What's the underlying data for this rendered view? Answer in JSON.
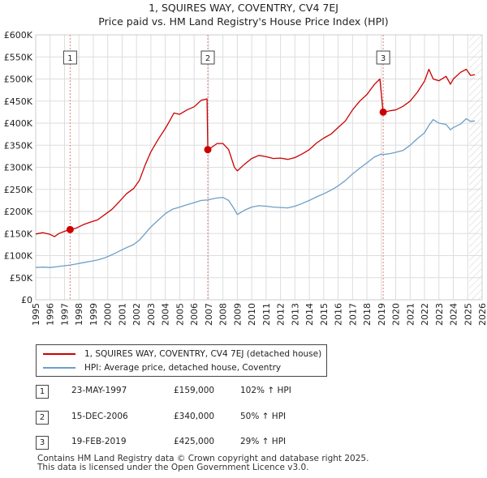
{
  "chart_data": {
    "type": "line",
    "title": "1, SQUIRES WAY, COVENTRY, CV4 7EJ",
    "subtitle": "Price paid vs. HM Land Registry's House Price Index (HPI)",
    "xlim": [
      1995,
      2026
    ],
    "ylim": [
      0,
      600000
    ],
    "x_ticks": [
      "1995",
      "1996",
      "1997",
      "1998",
      "1999",
      "2000",
      "2001",
      "2002",
      "2003",
      "2004",
      "2005",
      "2006",
      "2007",
      "2008",
      "2009",
      "2010",
      "2011",
      "2012",
      "2013",
      "2014",
      "2015",
      "2016",
      "2017",
      "2018",
      "2019",
      "2020",
      "2021",
      "2022",
      "2023",
      "2024",
      "2025",
      "2026"
    ],
    "y_ticks": [
      {
        "value": 0,
        "label": "£0"
      },
      {
        "value": 50000,
        "label": "£50K"
      },
      {
        "value": 100000,
        "label": "£100K"
      },
      {
        "value": 150000,
        "label": "£150K"
      },
      {
        "value": 200000,
        "label": "£200K"
      },
      {
        "value": 250000,
        "label": "£250K"
      },
      {
        "value": 300000,
        "label": "£300K"
      },
      {
        "value": 350000,
        "label": "£350K"
      },
      {
        "value": 400000,
        "label": "£400K"
      },
      {
        "value": 450000,
        "label": "£450K"
      },
      {
        "value": 500000,
        "label": "£500K"
      },
      {
        "value": 550000,
        "label": "£550K"
      },
      {
        "value": 600000,
        "label": "£600K"
      }
    ],
    "grid": true,
    "future_hatch_from": 2025.1,
    "series": [
      {
        "name": "1, SQUIRES WAY, COVENTRY, CV4 7EJ (detached house)",
        "color": "#cc0000",
        "points": [
          [
            1995.0,
            149000
          ],
          [
            1995.5,
            152000
          ],
          [
            1996.0,
            148000
          ],
          [
            1996.3,
            143000
          ],
          [
            1996.6,
            150000
          ],
          [
            1997.0,
            155000
          ],
          [
            1997.39,
            159000
          ],
          [
            1997.8,
            162000
          ],
          [
            1998.3,
            170000
          ],
          [
            1998.8,
            176000
          ],
          [
            1999.3,
            181000
          ],
          [
            1999.8,
            193000
          ],
          [
            2000.3,
            205000
          ],
          [
            2000.8,
            222000
          ],
          [
            2001.3,
            240000
          ],
          [
            2001.8,
            252000
          ],
          [
            2002.2,
            270000
          ],
          [
            2002.6,
            305000
          ],
          [
            2003.0,
            335000
          ],
          [
            2003.5,
            363000
          ],
          [
            2004.0,
            388000
          ],
          [
            2004.3,
            405000
          ],
          [
            2004.6,
            423000
          ],
          [
            2005.0,
            420000
          ],
          [
            2005.5,
            430000
          ],
          [
            2006.0,
            437000
          ],
          [
            2006.5,
            452000
          ],
          [
            2006.9,
            455000
          ],
          [
            2006.95,
            340000
          ],
          [
            2007.2,
            345000
          ],
          [
            2007.6,
            354000
          ],
          [
            2008.0,
            354000
          ],
          [
            2008.4,
            340000
          ],
          [
            2008.8,
            300000
          ],
          [
            2009.0,
            292000
          ],
          [
            2009.5,
            307000
          ],
          [
            2010.0,
            320000
          ],
          [
            2010.5,
            327000
          ],
          [
            2011.0,
            324000
          ],
          [
            2011.5,
            320000
          ],
          [
            2012.0,
            321000
          ],
          [
            2012.5,
            318000
          ],
          [
            2013.0,
            322000
          ],
          [
            2013.5,
            330000
          ],
          [
            2014.0,
            340000
          ],
          [
            2014.5,
            355000
          ],
          [
            2015.0,
            366000
          ],
          [
            2015.5,
            375000
          ],
          [
            2016.0,
            390000
          ],
          [
            2016.5,
            405000
          ],
          [
            2017.0,
            430000
          ],
          [
            2017.5,
            450000
          ],
          [
            2018.0,
            465000
          ],
          [
            2018.5,
            487000
          ],
          [
            2018.9,
            500000
          ],
          [
            2019.13,
            425000
          ],
          [
            2019.6,
            428000
          ],
          [
            2020.0,
            430000
          ],
          [
            2020.5,
            438000
          ],
          [
            2021.0,
            450000
          ],
          [
            2021.5,
            470000
          ],
          [
            2022.0,
            495000
          ],
          [
            2022.3,
            522000
          ],
          [
            2022.6,
            500000
          ],
          [
            2023.0,
            496000
          ],
          [
            2023.5,
            506000
          ],
          [
            2023.8,
            488000
          ],
          [
            2024.0,
            500000
          ],
          [
            2024.5,
            515000
          ],
          [
            2024.9,
            522000
          ],
          [
            2025.2,
            508000
          ],
          [
            2025.5,
            510000
          ]
        ]
      },
      {
        "name": "HPI: Average price, detached house, Coventry",
        "color": "#6d9ec9",
        "points": [
          [
            1995.0,
            73000
          ],
          [
            1995.5,
            74000
          ],
          [
            1996.0,
            73000
          ],
          [
            1996.5,
            75000
          ],
          [
            1997.0,
            77000
          ],
          [
            1997.39,
            78800
          ],
          [
            1997.8,
            81000
          ],
          [
            1998.3,
            84000
          ],
          [
            1998.8,
            87000
          ],
          [
            1999.3,
            90000
          ],
          [
            1999.8,
            95000
          ],
          [
            2000.3,
            102000
          ],
          [
            2000.8,
            110000
          ],
          [
            2001.3,
            118000
          ],
          [
            2001.8,
            125000
          ],
          [
            2002.2,
            135000
          ],
          [
            2002.6,
            150000
          ],
          [
            2003.0,
            165000
          ],
          [
            2003.5,
            180000
          ],
          [
            2004.0,
            195000
          ],
          [
            2004.5,
            205000
          ],
          [
            2005.0,
            210000
          ],
          [
            2005.5,
            215000
          ],
          [
            2006.0,
            220000
          ],
          [
            2006.5,
            225000
          ],
          [
            2006.95,
            226000
          ],
          [
            2007.5,
            230000
          ],
          [
            2008.0,
            232000
          ],
          [
            2008.4,
            225000
          ],
          [
            2008.8,
            205000
          ],
          [
            2009.0,
            193000
          ],
          [
            2009.5,
            203000
          ],
          [
            2010.0,
            210000
          ],
          [
            2010.5,
            213000
          ],
          [
            2011.0,
            212000
          ],
          [
            2011.5,
            210000
          ],
          [
            2012.0,
            209000
          ],
          [
            2012.5,
            208000
          ],
          [
            2013.0,
            212000
          ],
          [
            2013.5,
            218000
          ],
          [
            2014.0,
            225000
          ],
          [
            2014.5,
            233000
          ],
          [
            2015.0,
            240000
          ],
          [
            2015.5,
            248000
          ],
          [
            2016.0,
            258000
          ],
          [
            2016.5,
            270000
          ],
          [
            2017.0,
            285000
          ],
          [
            2017.5,
            298000
          ],
          [
            2018.0,
            310000
          ],
          [
            2018.5,
            323000
          ],
          [
            2019.0,
            330000
          ],
          [
            2019.13,
            329000
          ],
          [
            2019.6,
            331000
          ],
          [
            2020.0,
            334000
          ],
          [
            2020.5,
            338000
          ],
          [
            2021.0,
            350000
          ],
          [
            2021.5,
            365000
          ],
          [
            2022.0,
            378000
          ],
          [
            2022.3,
            395000
          ],
          [
            2022.6,
            408000
          ],
          [
            2023.0,
            400000
          ],
          [
            2023.5,
            397000
          ],
          [
            2023.8,
            385000
          ],
          [
            2024.0,
            390000
          ],
          [
            2024.5,
            398000
          ],
          [
            2024.9,
            410000
          ],
          [
            2025.2,
            404000
          ],
          [
            2025.5,
            405000
          ]
        ]
      }
    ],
    "sales": [
      {
        "label": "1",
        "x": 1997.39,
        "value": 159000
      },
      {
        "label": "2",
        "x": 2006.95,
        "value": 340000
      },
      {
        "label": "3",
        "x": 2019.13,
        "value": 425000
      }
    ]
  },
  "legend": {
    "property": "1, SQUIRES WAY, COVENTRY, CV4 7EJ (detached house)",
    "hpi": "HPI: Average price, detached house, Coventry"
  },
  "transactions": [
    {
      "num": "1",
      "date": "23-MAY-1997",
      "price": "£159,000",
      "hpi": "102% ↑ HPI"
    },
    {
      "num": "2",
      "date": "15-DEC-2006",
      "price": "£340,000",
      "hpi": "50% ↑ HPI"
    },
    {
      "num": "3",
      "date": "19-FEB-2019",
      "price": "£425,000",
      "hpi": "29% ↑ HPI"
    }
  ],
  "footer": {
    "line1": "Contains HM Land Registry data © Crown copyright and database right 2025.",
    "line2": "This data is licensed under the Open Government Licence v3.0."
  }
}
